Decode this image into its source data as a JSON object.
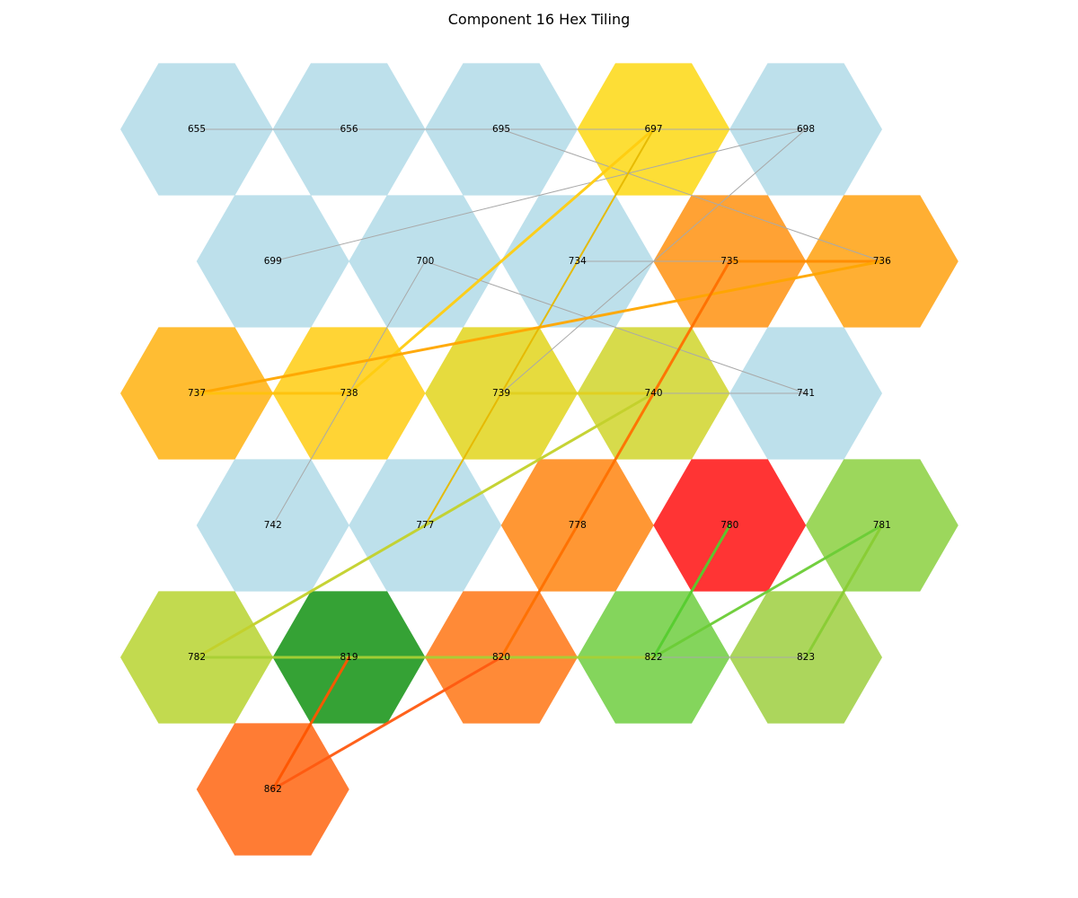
{
  "title": "Component 16 Hex Tiling",
  "cells": [
    {
      "id": "655",
      "row": 0,
      "col": 0,
      "color": "#add8e6",
      "opacity": 0.8
    },
    {
      "id": "656",
      "row": 0,
      "col": 1,
      "color": "#add8e6",
      "opacity": 0.8
    },
    {
      "id": "695",
      "row": 0,
      "col": 2,
      "color": "#add8e6",
      "opacity": 0.8
    },
    {
      "id": "697",
      "row": 0,
      "col": 3,
      "color": "#fdd813",
      "opacity": 0.85
    },
    {
      "id": "698",
      "row": 0,
      "col": 4,
      "color": "#add8e6",
      "opacity": 0.8
    },
    {
      "id": "699",
      "row": 1,
      "col": 0,
      "color": "#add8e6",
      "opacity": 0.8
    },
    {
      "id": "700",
      "row": 1,
      "col": 1,
      "color": "#add8e6",
      "opacity": 0.8
    },
    {
      "id": "734",
      "row": 1,
      "col": 2,
      "color": "#add8e6",
      "opacity": 0.8
    },
    {
      "id": "735",
      "row": 1,
      "col": 3,
      "color": "#ff9210",
      "opacity": 0.85
    },
    {
      "id": "736",
      "row": 1,
      "col": 4,
      "color": "#ffa10f",
      "opacity": 0.85
    },
    {
      "id": "737",
      "row": 2,
      "col": 0,
      "color": "#ffb10f",
      "opacity": 0.85
    },
    {
      "id": "738",
      "row": 2,
      "col": 1,
      "color": "#ffcc12",
      "opacity": 0.85
    },
    {
      "id": "739",
      "row": 2,
      "col": 2,
      "color": "#e2d51c",
      "opacity": 0.85
    },
    {
      "id": "740",
      "row": 2,
      "col": 3,
      "color": "#d0d52b",
      "opacity": 0.85
    },
    {
      "id": "741",
      "row": 2,
      "col": 4,
      "color": "#add8e6",
      "opacity": 0.8
    },
    {
      "id": "742",
      "row": 3,
      "col": 0,
      "color": "#add8e6",
      "opacity": 0.8
    },
    {
      "id": "777",
      "row": 3,
      "col": 1,
      "color": "#add8e6",
      "opacity": 0.8
    },
    {
      "id": "778",
      "row": 3,
      "col": 2,
      "color": "#ff8510",
      "opacity": 0.85
    },
    {
      "id": "780",
      "row": 3,
      "col": 3,
      "color": "#ff1010",
      "opacity": 0.85
    },
    {
      "id": "781",
      "row": 3,
      "col": 4,
      "color": "#8bd040",
      "opacity": 0.85
    },
    {
      "id": "782",
      "row": 4,
      "col": 0,
      "color": "#b7d430",
      "opacity": 0.85
    },
    {
      "id": "819",
      "row": 4,
      "col": 1,
      "color": "#038b03",
      "opacity": 0.8
    },
    {
      "id": "820",
      "row": 4,
      "col": 2,
      "color": "#ff7614",
      "opacity": 0.85
    },
    {
      "id": "822",
      "row": 4,
      "col": 3,
      "color": "#6fce40",
      "opacity": 0.85
    },
    {
      "id": "823",
      "row": 4,
      "col": 4,
      "color": "#9dcf40",
      "opacity": 0.85
    },
    {
      "id": "862",
      "row": 5,
      "col": 0,
      "color": "#ff6510",
      "opacity": 0.85
    }
  ],
  "edges": [
    {
      "from": "655",
      "to": "698",
      "color": "#a9a9a9",
      "width": 1
    },
    {
      "from": "695",
      "to": "736",
      "color": "#a9a9a9",
      "width": 1
    },
    {
      "from": "699",
      "to": "698",
      "color": "#a9a9a9",
      "width": 1
    },
    {
      "from": "739",
      "to": "698",
      "color": "#a9a9a9",
      "width": 1
    },
    {
      "from": "700",
      "to": "741",
      "color": "#a9a9a9",
      "width": 1
    },
    {
      "from": "700",
      "to": "742",
      "color": "#a9a9a9",
      "width": 1
    },
    {
      "from": "734",
      "to": "735",
      "color": "#a9a9a9",
      "width": 1
    },
    {
      "from": "740",
      "to": "741",
      "color": "#a9a9a9",
      "width": 1
    },
    {
      "from": "822",
      "to": "823",
      "color": "#a9a9a9",
      "width": 1
    },
    {
      "from": "697",
      "to": "738",
      "color": "#ffcc10",
      "width": 3
    },
    {
      "from": "697",
      "to": "777",
      "color": "#e6b800",
      "width": 2
    },
    {
      "from": "735",
      "to": "736",
      "color": "#ff8c00",
      "width": 3
    },
    {
      "from": "737",
      "to": "736",
      "color": "#ffa500",
      "width": 3
    },
    {
      "from": "737",
      "to": "738",
      "color": "#ffc20e",
      "width": 3
    },
    {
      "from": "739",
      "to": "740",
      "color": "#e0d020",
      "width": 3
    },
    {
      "from": "740",
      "to": "782",
      "color": "#c3d12a",
      "width": 3
    },
    {
      "from": "735",
      "to": "820",
      "color": "#ff7000",
      "width": 3
    },
    {
      "from": "780",
      "to": "822",
      "color": "#55cc2e",
      "width": 3
    },
    {
      "from": "781",
      "to": "822",
      "color": "#6acc35",
      "width": 3
    },
    {
      "from": "781",
      "to": "823",
      "color": "#88cc33",
      "width": 3
    },
    {
      "from": "782",
      "to": "822",
      "color": "#a8d035",
      "width": 3
    },
    {
      "from": "819",
      "to": "862",
      "color": "#ff5500",
      "width": 3
    },
    {
      "from": "820",
      "to": "862",
      "color": "#ff5a10",
      "width": 3
    }
  ]
}
